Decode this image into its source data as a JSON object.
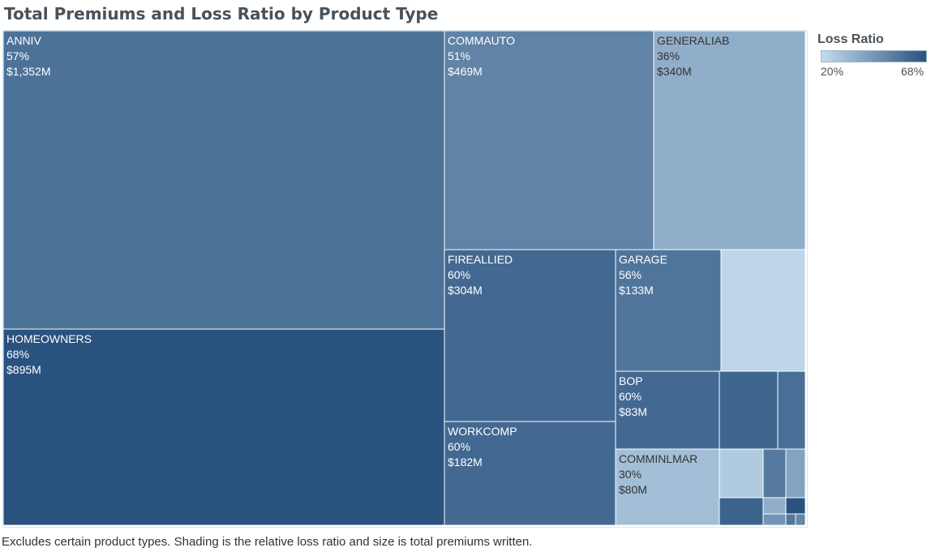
{
  "title": "Total Premiums and Loss Ratio by Product Type",
  "footnote": "Excludes certain product types. Shading is the relative loss ratio and size is total premiums written.",
  "legend": {
    "title": "Loss Ratio",
    "min_label": "20%",
    "max_label": "68%",
    "color_low": "#c3dcee",
    "color_high": "#29527f"
  },
  "chart_data": {
    "type": "treemap",
    "size_measure": "total premiums written ($M)",
    "color_measure": "loss ratio (%)",
    "color_range": [
      20,
      68
    ],
    "items": [
      {
        "name": "ANNIV",
        "loss_ratio_label": "57%",
        "premium_label": "$1,352M",
        "loss_ratio": 57,
        "premium": 1352
      },
      {
        "name": "HOMEOWNERS",
        "loss_ratio_label": "68%",
        "premium_label": "$895M",
        "loss_ratio": 68,
        "premium": 895
      },
      {
        "name": "COMMAUTO",
        "loss_ratio_label": "51%",
        "premium_label": "$469M",
        "loss_ratio": 51,
        "premium": 469
      },
      {
        "name": "GENERALIAB",
        "loss_ratio_label": "36%",
        "premium_label": "$340M",
        "loss_ratio": 36,
        "premium": 340
      },
      {
        "name": "FIREALLIED",
        "loss_ratio_label": "60%",
        "premium_label": "$304M",
        "loss_ratio": 60,
        "premium": 304
      },
      {
        "name": "WORKCOMP",
        "loss_ratio_label": "60%",
        "premium_label": "$182M",
        "loss_ratio": 60,
        "premium": 182
      },
      {
        "name": "GARAGE",
        "loss_ratio_label": "56%",
        "premium_label": "$133M",
        "loss_ratio": 56,
        "premium": 133
      },
      {
        "name": "BOP",
        "loss_ratio_label": "60%",
        "premium_label": "$83M",
        "loss_ratio": 60,
        "premium": 83
      },
      {
        "name": "COMMINLMAR",
        "loss_ratio_label": "30%",
        "premium_label": "$80M",
        "loss_ratio": 30,
        "premium": 80
      }
    ],
    "unlabeled_items": [
      {
        "loss_ratio": 22
      },
      {
        "loss_ratio": 61
      },
      {
        "loss_ratio": 58
      },
      {
        "loss_ratio": 26
      },
      {
        "loss_ratio": 54
      },
      {
        "loss_ratio": 40
      },
      {
        "loss_ratio": 36
      },
      {
        "loss_ratio": 68
      },
      {
        "loss_ratio": 62
      },
      {
        "loss_ratio": 45
      },
      {
        "loss_ratio": 55
      },
      {
        "loss_ratio": 50
      }
    ]
  }
}
